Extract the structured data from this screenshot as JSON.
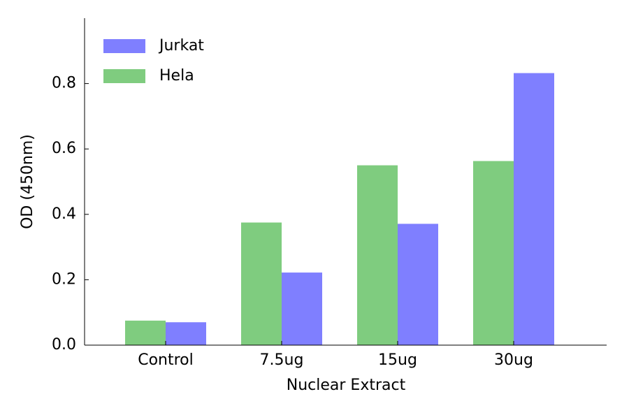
{
  "chart_data": {
    "type": "bar",
    "x_label": "Nuclear Extract",
    "y_label": "OD (450nm)",
    "categories": [
      "Control",
      "7.5ug",
      "15ug",
      "30ug"
    ],
    "series": [
      {
        "name": "Jurkat",
        "color": "#7f7fff",
        "values": [
          0.07,
          0.222,
          0.371,
          0.832
        ]
      },
      {
        "name": "Hela",
        "color": "#7fcc7f",
        "values": [
          0.075,
          0.375,
          0.55,
          0.563
        ]
      }
    ],
    "ylim": [
      0,
      1.0
    ],
    "yticks": [
      {
        "value": 0,
        "label": "0.0"
      },
      0.2,
      0.4,
      0.6,
      0.8
    ],
    "legend": "upper left"
  }
}
